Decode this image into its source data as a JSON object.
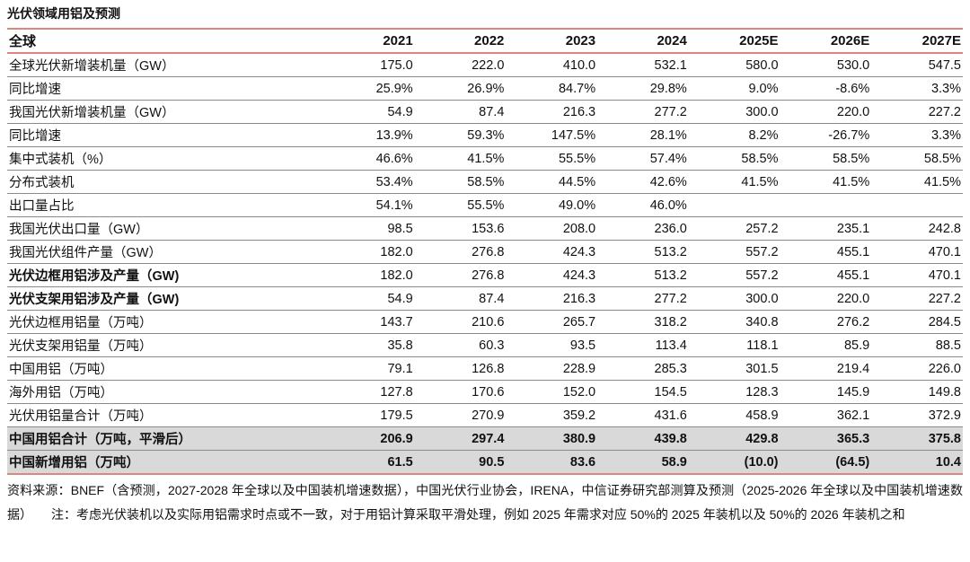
{
  "title": "光伏领域用铝及预测",
  "colors": {
    "accent_line": "#e0847f",
    "divider": "#8a8a8a",
    "highlight_row_bg": "#d9d9d9",
    "text": "#111111"
  },
  "table": {
    "header": [
      "全球",
      "2021",
      "2022",
      "2023",
      "2024",
      "2025E",
      "2026E",
      "2027E"
    ],
    "rows": [
      {
        "label": "全球光伏新增装机量（GW）",
        "bold_label": false,
        "highlight": false,
        "values": [
          "175.0",
          "222.0",
          "410.0",
          "532.1",
          "580.0",
          "530.0",
          "547.5"
        ]
      },
      {
        "label": "同比增速",
        "bold_label": false,
        "highlight": false,
        "values": [
          "25.9%",
          "26.9%",
          "84.7%",
          "29.8%",
          "9.0%",
          "-8.6%",
          "3.3%"
        ]
      },
      {
        "label": "我国光伏新增装机量（GW）",
        "bold_label": false,
        "highlight": false,
        "values": [
          "54.9",
          "87.4",
          "216.3",
          "277.2",
          "300.0",
          "220.0",
          "227.2"
        ]
      },
      {
        "label": "同比增速",
        "bold_label": false,
        "highlight": false,
        "values": [
          "13.9%",
          "59.3%",
          "147.5%",
          "28.1%",
          "8.2%",
          "-26.7%",
          "3.3%"
        ]
      },
      {
        "label": "集中式装机（%）",
        "bold_label": false,
        "highlight": false,
        "values": [
          "46.6%",
          "41.5%",
          "55.5%",
          "57.4%",
          "58.5%",
          "58.5%",
          "58.5%"
        ]
      },
      {
        "label": "分布式装机",
        "bold_label": false,
        "highlight": false,
        "values": [
          "53.4%",
          "58.5%",
          "44.5%",
          "42.6%",
          "41.5%",
          "41.5%",
          "41.5%"
        ]
      },
      {
        "label": "出口量占比",
        "bold_label": false,
        "highlight": false,
        "values": [
          "54.1%",
          "55.5%",
          "49.0%",
          "46.0%",
          "",
          "",
          ""
        ]
      },
      {
        "label": "我国光伏出口量（GW）",
        "bold_label": false,
        "highlight": false,
        "values": [
          "98.5",
          "153.6",
          "208.0",
          "236.0",
          "257.2",
          "235.1",
          "242.8"
        ]
      },
      {
        "label": "我国光伏组件产量（GW）",
        "bold_label": false,
        "highlight": false,
        "values": [
          "182.0",
          "276.8",
          "424.3",
          "513.2",
          "557.2",
          "455.1",
          "470.1"
        ]
      },
      {
        "label": "光伏边框用铝涉及产量（GW)",
        "bold_label": true,
        "highlight": false,
        "values": [
          "182.0",
          "276.8",
          "424.3",
          "513.2",
          "557.2",
          "455.1",
          "470.1"
        ]
      },
      {
        "label": "光伏支架用铝涉及产量（GW)",
        "bold_label": true,
        "highlight": false,
        "values": [
          "54.9",
          "87.4",
          "216.3",
          "277.2",
          "300.0",
          "220.0",
          "227.2"
        ]
      },
      {
        "label": "光伏边框用铝量（万吨）",
        "bold_label": false,
        "highlight": false,
        "values": [
          "143.7",
          "210.6",
          "265.7",
          "318.2",
          "340.8",
          "276.2",
          "284.5"
        ]
      },
      {
        "label": "光伏支架用铝量（万吨）",
        "bold_label": false,
        "highlight": false,
        "values": [
          "35.8",
          "60.3",
          "93.5",
          "113.4",
          "118.1",
          "85.9",
          "88.5"
        ]
      },
      {
        "label": "中国用铝（万吨）",
        "bold_label": false,
        "highlight": false,
        "values": [
          "79.1",
          "126.8",
          "228.9",
          "285.3",
          "301.5",
          "219.4",
          "226.0"
        ]
      },
      {
        "label": "海外用铝（万吨）",
        "bold_label": false,
        "highlight": false,
        "values": [
          "127.8",
          "170.6",
          "152.0",
          "154.5",
          "128.3",
          "145.9",
          "149.8"
        ]
      },
      {
        "label": "光伏用铝量合计（万吨）",
        "bold_label": false,
        "highlight": false,
        "values": [
          "179.5",
          "270.9",
          "359.2",
          "431.6",
          "458.9",
          "362.1",
          "372.9"
        ]
      },
      {
        "label": "中国用铝合计（万吨，平滑后）",
        "bold_label": true,
        "highlight": true,
        "values": [
          "206.9",
          "297.4",
          "380.9",
          "439.8",
          "429.8",
          "365.3",
          "375.8"
        ]
      },
      {
        "label": "中国新增用铝（万吨）",
        "bold_label": true,
        "highlight": true,
        "values": [
          "61.5",
          "90.5",
          "83.6",
          "58.9",
          "(10.0)",
          "(64.5)",
          "10.4"
        ]
      }
    ]
  },
  "footnote": "资料来源：BNEF（含预测，2027-2028 年全球以及中国装机增速数据），中国光伏行业协会，IRENA，中信证券研究部测算及预测（2025-2026 年全球以及中国装机增速数据）　　注：考虑光伏装机以及实际用铝需求时点或不一致，对于用铝计算采取平滑处理，例如 2025 年需求对应 50%的 2025 年装机以及 50%的 2026 年装机之和"
}
